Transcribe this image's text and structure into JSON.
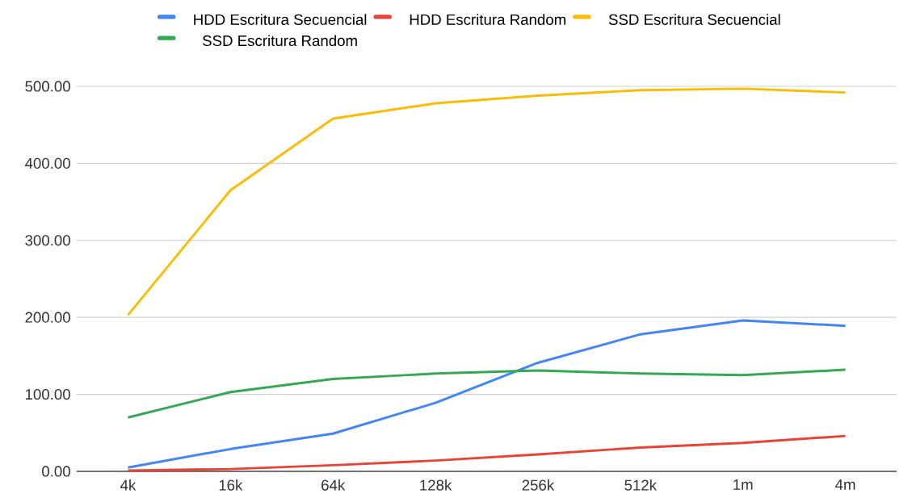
{
  "chart_data": {
    "type": "line",
    "categories": [
      "4k",
      "16k",
      "64k",
      "128k",
      "256k",
      "512k",
      "1m",
      "4m"
    ],
    "series": [
      {
        "name": "HDD Escritura Secuencial",
        "color": "#4285f4",
        "values": [
          5,
          29,
          49,
          89,
          141,
          178,
          196,
          189
        ]
      },
      {
        "name": "HDD Escritura Random",
        "color": "#ea4335",
        "values": [
          1,
          3,
          8,
          14,
          22,
          31,
          37,
          46
        ]
      },
      {
        "name": "SSD Escritura Secuencial",
        "color": "#fbbc04",
        "values": [
          203,
          365,
          458,
          478,
          488,
          495,
          497,
          492
        ]
      },
      {
        "name": "SSD Escritura Random",
        "color": "#34a853",
        "values": [
          70,
          103,
          120,
          127,
          131,
          127,
          125,
          132
        ]
      }
    ],
    "ylim": [
      0,
      500
    ],
    "yticks": [
      {
        "value": 0,
        "label": "0.00"
      },
      {
        "value": 100,
        "label": "100.00"
      },
      {
        "value": 200,
        "label": "200.00"
      },
      {
        "value": 300,
        "label": "300.00"
      },
      {
        "value": 400,
        "label": "400.00"
      },
      {
        "value": 500,
        "label": "500.00"
      }
    ],
    "grid": "y",
    "legend": "top",
    "marker": "none",
    "line_style": "solid"
  }
}
